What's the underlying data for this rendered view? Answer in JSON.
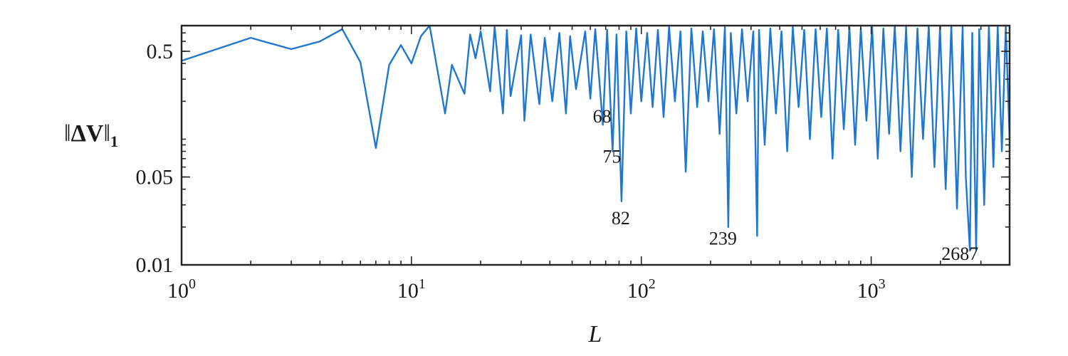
{
  "chart_data": {
    "type": "line",
    "xscale": "log",
    "yscale": "log",
    "xlim": [
      1,
      4000
    ],
    "ylim": [
      0.01,
      0.8
    ],
    "xlabel": "L",
    "ylabel": "‖ΔV‖₁",
    "ylabel_parts": {
      "bars_left": "‖",
      "symbol": "ΔV",
      "bars_right": "‖",
      "sub": "1"
    },
    "x_ticks": [
      {
        "value": 1,
        "base": "10",
        "exp": "0"
      },
      {
        "value": 10,
        "base": "10",
        "exp": "1"
      },
      {
        "value": 100,
        "base": "10",
        "exp": "2"
      },
      {
        "value": 1000,
        "base": "10",
        "exp": "3"
      }
    ],
    "y_ticks": [
      {
        "value": 0.5,
        "label": "0.5"
      },
      {
        "value": 0.05,
        "label": "0.05"
      },
      {
        "value": 0.01,
        "label": "0.01"
      }
    ],
    "series": [
      {
        "color": "#1f77cf",
        "x": [
          1,
          2,
          3,
          4,
          5,
          6,
          7,
          8,
          9,
          10,
          11,
          12,
          14,
          15,
          17,
          18,
          19,
          20,
          22,
          23,
          25,
          26,
          27,
          30,
          31,
          33,
          36,
          38,
          41,
          44,
          47,
          49,
          52,
          57,
          60,
          63,
          68,
          71,
          75,
          78,
          82,
          86,
          90,
          95,
          100,
          106,
          112,
          118,
          125,
          132,
          140,
          148,
          156,
          165,
          175,
          185,
          196,
          207,
          219,
          231,
          239,
          245,
          259,
          274,
          290,
          307,
          319,
          325,
          344,
          364,
          385,
          407,
          431,
          456,
          483,
          511,
          541,
          573,
          606,
          641,
          679,
          718,
          760,
          804,
          851,
          901,
          953,
          1009,
          1068,
          1130,
          1196,
          1266,
          1340,
          1418,
          1501,
          1588,
          1681,
          1779,
          1883,
          1992,
          2108,
          2231,
          2361,
          2499,
          2580,
          2687,
          2750,
          2860,
          2950,
          3100,
          3250,
          3400,
          3550,
          3700,
          3850,
          4000
        ],
        "y": [
          0.42,
          0.64,
          0.52,
          0.6,
          0.75,
          0.41,
          0.085,
          0.39,
          0.56,
          0.4,
          0.66,
          0.8,
          0.16,
          0.39,
          0.23,
          0.68,
          0.44,
          0.72,
          0.24,
          0.78,
          0.16,
          0.74,
          0.22,
          0.67,
          0.14,
          0.68,
          0.19,
          0.64,
          0.2,
          0.7,
          0.16,
          0.66,
          0.25,
          0.72,
          0.21,
          0.75,
          0.13,
          0.74,
          0.08,
          0.68,
          0.032,
          0.72,
          0.16,
          0.76,
          0.2,
          0.7,
          0.18,
          0.74,
          0.15,
          0.78,
          0.2,
          0.72,
          0.055,
          0.76,
          0.18,
          0.72,
          0.2,
          0.75,
          0.11,
          0.78,
          0.02,
          0.7,
          0.16,
          0.75,
          0.2,
          0.72,
          0.017,
          0.74,
          0.09,
          0.76,
          0.16,
          0.72,
          0.08,
          0.78,
          0.18,
          0.74,
          0.1,
          0.75,
          0.15,
          0.76,
          0.07,
          0.74,
          0.12,
          0.78,
          0.09,
          0.76,
          0.14,
          0.78,
          0.07,
          0.76,
          0.11,
          0.8,
          0.08,
          0.78,
          0.05,
          0.76,
          0.1,
          0.8,
          0.06,
          0.78,
          0.04,
          0.8,
          0.028,
          0.78,
          0.05,
          0.013,
          0.7,
          0.013,
          0.75,
          0.03,
          0.8,
          0.06,
          0.78,
          0.08,
          0.79,
          0.1
        ]
      }
    ],
    "annotations": [
      {
        "text": "68",
        "x": 68,
        "y": 0.155
      },
      {
        "text": "75",
        "x": 75,
        "y": 0.074
      },
      {
        "text": "82",
        "x": 82,
        "y": 0.024
      },
      {
        "text": "239",
        "x": 239,
        "y": 0.0165
      },
      {
        "text": "2687",
        "x": 2687,
        "y": 0.0125
      }
    ],
    "grid": false
  }
}
